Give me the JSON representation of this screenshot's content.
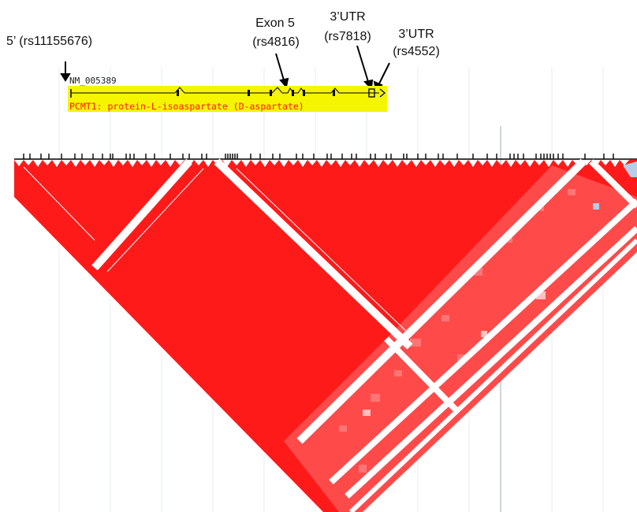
{
  "annotations": {
    "five_prime": "5’ (rs11155676)",
    "exon5_line1": "Exon 5",
    "exon5_line2": "(rs4816)",
    "utr1_line1": "3’UTR",
    "utr1_line2": "(rs7818)",
    "utr2_line1": "3’UTR",
    "utr2_line2": "(rs4552)"
  },
  "gene_track": {
    "accession": "NM_005389",
    "description": "PCMT1: protein-L-isoaspartate (D-aspartate)",
    "highlight_color": "#f5f500",
    "strand": "forward"
  },
  "ld_plot": {
    "high_ld_color": "#ff1a1a",
    "medium_ld_color": "#ff8a8a",
    "low_ld_color": "#b9cce8"
  }
}
